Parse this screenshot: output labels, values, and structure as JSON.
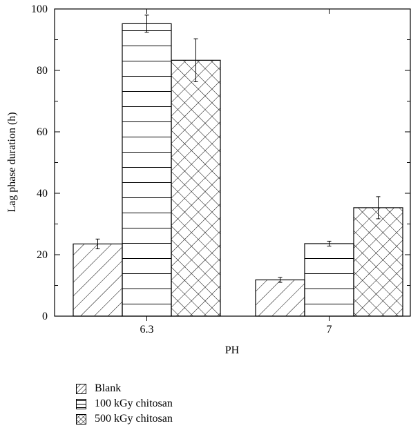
{
  "chart_data": {
    "type": "bar",
    "title": "",
    "xlabel": "PH",
    "ylabel": "Lag phase duration (h)",
    "ylim": [
      0,
      100
    ],
    "yticks": [
      0,
      20,
      40,
      60,
      80,
      100
    ],
    "categories": [
      "6.3",
      "7"
    ],
    "series": [
      {
        "name": "Blank",
        "values": [
          23.5,
          11.8
        ],
        "errors": [
          1.6,
          0.8
        ],
        "pattern": "diagonal"
      },
      {
        "name": "100 kGy chitosan",
        "values": [
          95.2,
          23.6
        ],
        "errors": [
          2.8,
          0.8
        ],
        "pattern": "horizontal"
      },
      {
        "name": "500 kGy chitosan",
        "values": [
          83.3,
          35.3
        ],
        "errors": [
          7.0,
          3.6
        ],
        "pattern": "crosshatch"
      }
    ],
    "grid": false,
    "legend_position": "bottom-left"
  }
}
